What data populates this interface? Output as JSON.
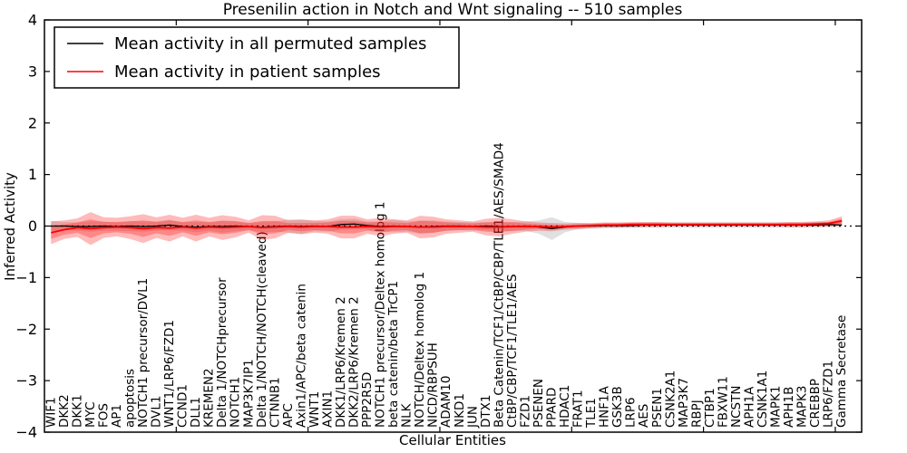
{
  "title": "Presenilin action in Notch and Wnt signaling -- 510 samples",
  "axes": {
    "ylabel": "Inferred Activity",
    "xlabel": "Cellular Entities",
    "ylim": [
      -4,
      4
    ],
    "xlim": [
      0,
      62
    ],
    "ytick_values": [
      4,
      3,
      2,
      1,
      0,
      -1,
      -2,
      -3,
      -4
    ],
    "ytick_labels": [
      "4",
      "3",
      "2",
      "1",
      "0",
      "−1",
      "−2",
      "−3",
      "−4"
    ],
    "xtick_values": [
      10,
      20,
      30,
      40,
      50,
      60
    ]
  },
  "legend": {
    "entries": [
      {
        "label": "Mean activity in all permuted samples",
        "color": "#000000"
      },
      {
        "label": "Mean activity in patient samples",
        "color": "#ff0000"
      }
    ]
  },
  "colors": {
    "permuted_line": "#000000",
    "patient_line": "#ff0000",
    "permuted_band": "#999999",
    "patient_band": "#ff0000",
    "zero_line": "#000000"
  },
  "chart_data": {
    "type": "line",
    "title": "Presenilin action in Notch and Wnt signaling -- 510 samples",
    "xlabel": "Cellular Entities",
    "ylabel": "Inferred Activity",
    "ylim": [
      -4,
      4
    ],
    "grid": false,
    "legend_position": "upper left",
    "categories": [
      "WIF1",
      "DKK2",
      "DKK1",
      "MYC",
      "FOS",
      "AP1",
      "apoptosis",
      "NOTCH1 precursor/DVL1",
      "DVL1",
      "WNT1/LRP6/FZD1",
      "CCND1",
      "DLL1",
      "KREMEN2",
      "Delta 1/NOTCHprecursor",
      "NOTCH1",
      "MAP3K7IP1",
      "Delta 1/NOTCH/NOTCH(cleaved)",
      "CTNNB1",
      "APC",
      "Axin1/APC/beta catenin",
      "WNT1",
      "AXIN1",
      "DKK1/LRP6/Kremen 2",
      "DKK2/LRP6/Kremen 2",
      "PPP2R5D",
      "NOTCH1 precursor/Deltex homolog 1",
      "beta catenin/beta TrCP1",
      "NLK",
      "NOTCH/Deltex homolog 1",
      "NICD/RBPSUH",
      "ADAM10",
      "NKD1",
      "JUN",
      "DTX1",
      "Beta Catenin/TCF1/CtBP/CBP/TLE1/AES/SMAD4",
      "CtBP/CBP/TCF1/TLE1/AES",
      "FZD1",
      "PSENEN",
      "PPARD",
      "HDAC1",
      "FRAT1",
      "TLE1",
      "HNF1A",
      "GSK3B",
      "LRP6",
      "AES",
      "PSEN1",
      "CSNK2A1",
      "MAP3K7",
      "RBPJ",
      "CTBP1",
      "FBXW11",
      "NCSTN",
      "APH1A",
      "CSNK1A1",
      "MAPK1",
      "APH1B",
      "MAPK3",
      "CREBBP",
      "LRP6/FZD1",
      "Gamma Secretase"
    ],
    "series": [
      {
        "name": "Mean activity in all permuted samples",
        "role": "line",
        "color": "#000000",
        "values": [
          0.0,
          0.0,
          -0.01,
          -0.01,
          0.0,
          -0.01,
          0.0,
          -0.01,
          0.0,
          0.02,
          -0.01,
          -0.02,
          -0.01,
          -0.01,
          0.0,
          -0.01,
          -0.02,
          -0.01,
          0.0,
          -0.01,
          0.0,
          -0.01,
          0.03,
          0.04,
          0.01,
          -0.01,
          0.0,
          -0.01,
          -0.02,
          -0.01,
          0.0,
          0.0,
          -0.01,
          0.0,
          -0.01,
          -0.01,
          0.0,
          -0.02,
          -0.05,
          -0.02,
          0.0,
          0.0,
          0.01,
          0.01,
          0.01,
          0.02,
          0.02,
          0.02,
          0.02,
          0.02,
          0.02,
          0.02,
          0.02,
          0.02,
          0.02,
          0.02,
          0.02,
          0.02,
          0.02,
          0.03,
          0.02
        ]
      },
      {
        "name": "Mean activity in patient samples",
        "role": "line",
        "color": "#ff0000",
        "values": [
          -0.13,
          -0.07,
          -0.03,
          -0.05,
          -0.03,
          -0.02,
          -0.03,
          -0.05,
          -0.03,
          -0.04,
          -0.02,
          -0.04,
          -0.02,
          -0.03,
          -0.02,
          -0.01,
          -0.03,
          -0.02,
          -0.01,
          -0.02,
          -0.01,
          -0.01,
          -0.02,
          -0.02,
          -0.01,
          -0.02,
          -0.01,
          -0.01,
          -0.02,
          -0.02,
          -0.01,
          -0.01,
          -0.01,
          -0.02,
          -0.02,
          -0.01,
          -0.01,
          -0.01,
          -0.02,
          -0.01,
          0.0,
          0.01,
          0.02,
          0.02,
          0.03,
          0.03,
          0.03,
          0.03,
          0.03,
          0.03,
          0.03,
          0.03,
          0.03,
          0.03,
          0.03,
          0.03,
          0.03,
          0.03,
          0.04,
          0.05,
          0.1
        ]
      },
      {
        "name": "Permuted samples std band (half-width)",
        "role": "band",
        "color": "#999999",
        "half_widths": [
          0.1,
          0.08,
          0.08,
          0.1,
          0.09,
          0.08,
          0.1,
          0.1,
          0.09,
          0.1,
          0.08,
          0.1,
          0.08,
          0.12,
          0.1,
          0.07,
          0.1,
          0.1,
          0.13,
          0.14,
          0.1,
          0.1,
          0.1,
          0.1,
          0.08,
          0.1,
          0.12,
          0.1,
          0.13,
          0.12,
          0.09,
          0.08,
          0.08,
          0.08,
          0.08,
          0.09,
          0.09,
          0.13,
          0.22,
          0.1,
          0.06,
          0.05,
          0.05,
          0.05,
          0.05,
          0.05,
          0.05,
          0.05,
          0.05,
          0.05,
          0.05,
          0.05,
          0.05,
          0.05,
          0.05,
          0.05,
          0.05,
          0.05,
          0.05,
          0.05,
          0.05
        ]
      },
      {
        "name": "Patient samples outer std band (half-width)",
        "role": "band",
        "color": "#ff0000",
        "half_widths": [
          0.22,
          0.18,
          0.18,
          0.32,
          0.2,
          0.18,
          0.22,
          0.28,
          0.2,
          0.26,
          0.18,
          0.26,
          0.18,
          0.24,
          0.2,
          0.12,
          0.24,
          0.22,
          0.12,
          0.14,
          0.12,
          0.14,
          0.22,
          0.22,
          0.14,
          0.18,
          0.14,
          0.12,
          0.22,
          0.2,
          0.14,
          0.12,
          0.1,
          0.16,
          0.18,
          0.14,
          0.1,
          0.08,
          0.08,
          0.06,
          0.06,
          0.05,
          0.05,
          0.05,
          0.05,
          0.05,
          0.05,
          0.04,
          0.04,
          0.04,
          0.04,
          0.04,
          0.04,
          0.04,
          0.04,
          0.04,
          0.05,
          0.05,
          0.05,
          0.06,
          0.09
        ]
      },
      {
        "name": "Patient samples inner std band (half-width)",
        "role": "band",
        "color": "#ff0000",
        "half_widths": [
          0.12,
          0.1,
          0.1,
          0.18,
          0.11,
          0.1,
          0.12,
          0.16,
          0.11,
          0.15,
          0.1,
          0.15,
          0.1,
          0.13,
          0.11,
          0.07,
          0.13,
          0.12,
          0.07,
          0.08,
          0.07,
          0.08,
          0.12,
          0.12,
          0.08,
          0.1,
          0.08,
          0.07,
          0.12,
          0.11,
          0.08,
          0.07,
          0.06,
          0.09,
          0.1,
          0.08,
          0.06,
          0.04,
          0.04,
          0.03,
          0.03,
          0.03,
          0.03,
          0.03,
          0.03,
          0.03,
          0.03,
          0.02,
          0.02,
          0.02,
          0.02,
          0.02,
          0.02,
          0.02,
          0.02,
          0.02,
          0.03,
          0.03,
          0.03,
          0.03,
          0.05
        ]
      }
    ],
    "zero_line": {
      "value": 0,
      "style": "dotted"
    }
  }
}
